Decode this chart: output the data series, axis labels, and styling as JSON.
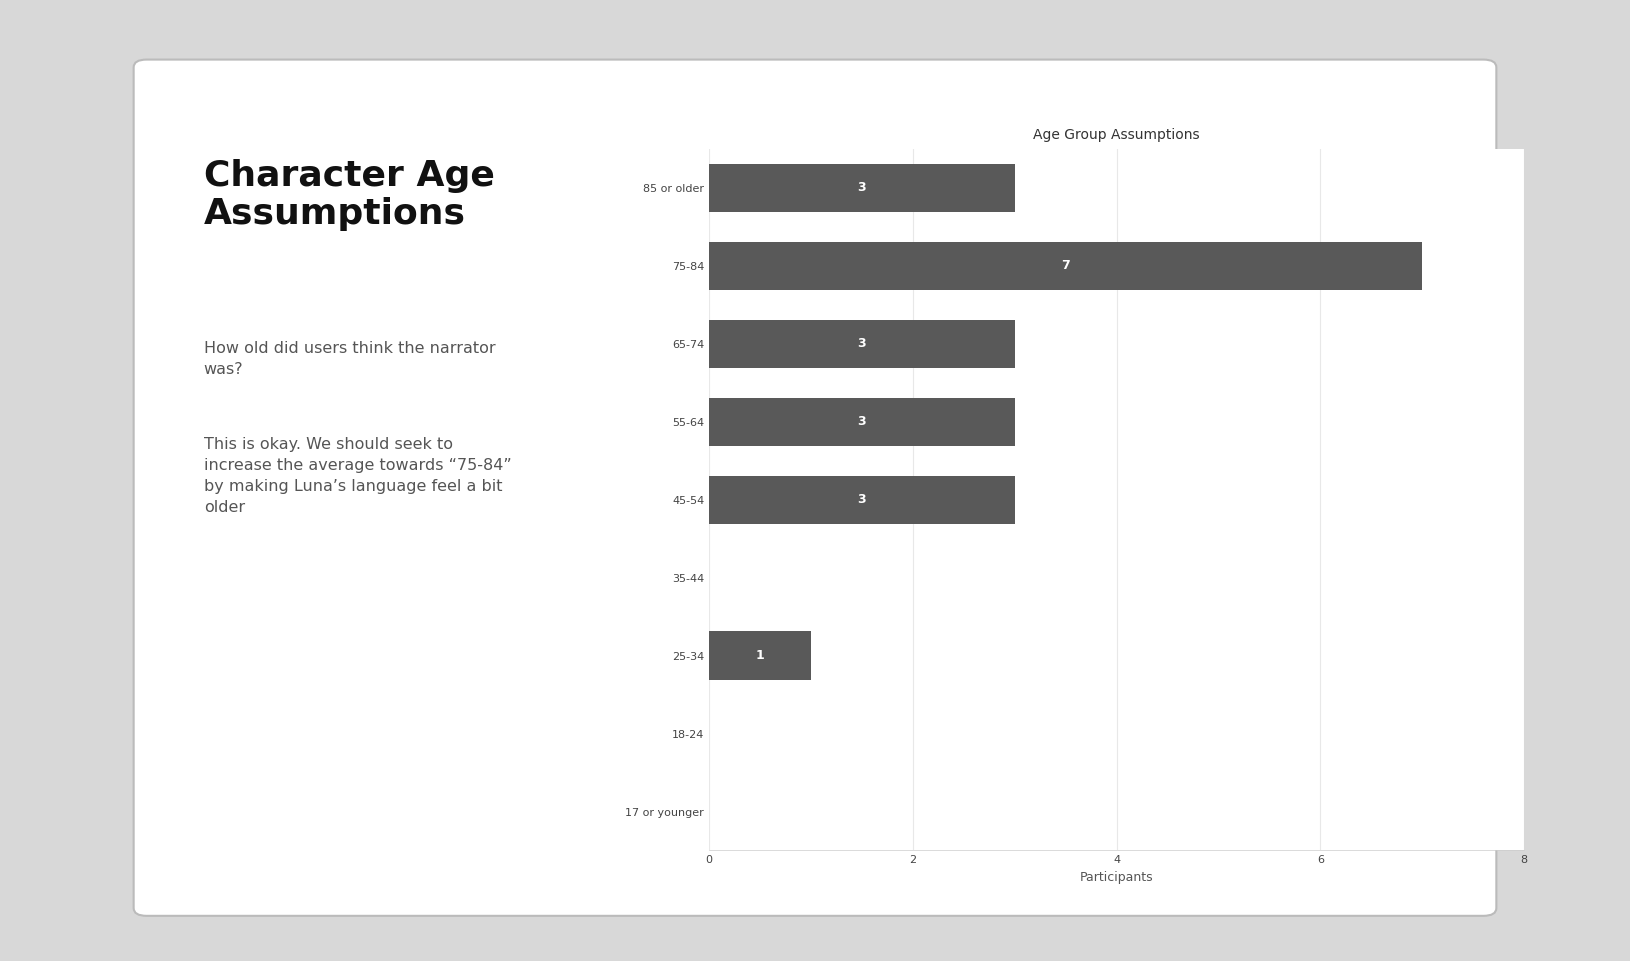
{
  "title": "Age Group Assumptions",
  "categories": [
    "85 or older",
    "75-84",
    "65-74",
    "55-64",
    "45-54",
    "35-44",
    "25-34",
    "18-24",
    "17 or younger"
  ],
  "values": [
    3,
    7,
    3,
    3,
    3,
    0,
    1,
    0,
    0
  ],
  "bar_color": "#595959",
  "bar_label_color": "#ffffff",
  "xlabel": "Participants",
  "xlim": [
    0,
    8
  ],
  "xtick_values": [
    0,
    2,
    4,
    6,
    8
  ],
  "background_color": "#ffffff",
  "title_fontsize": 10,
  "axis_label_fontsize": 9,
  "tick_label_fontsize": 8,
  "bar_label_fontsize": 9,
  "heading_text": "Character Age\nAssumptions",
  "body_text_1": "How old did users think the narrator\nwas?",
  "body_text_2": "This is okay. We should seek to\nincrease the average towards “75-84”\nby making Luna’s language feel a bit\nolder",
  "grid_color": "#e8e8e8",
  "bar_height": 0.62,
  "laptop_bg": "#d8d8d8",
  "slide_bg": "#ffffff",
  "slide_border": "#bbbbbb"
}
